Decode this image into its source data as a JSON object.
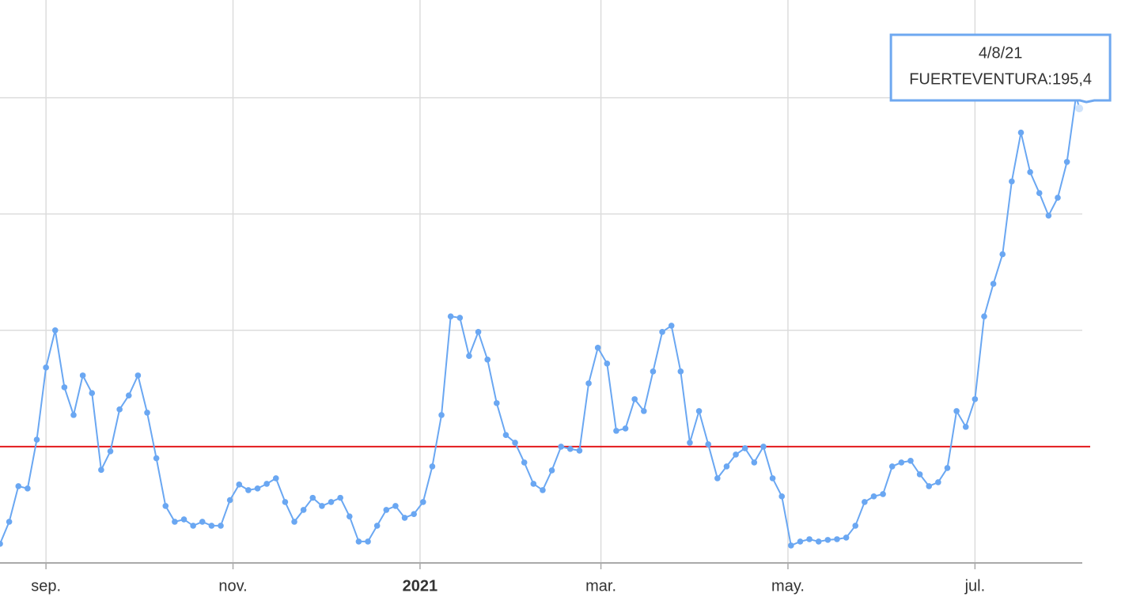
{
  "chart_data": {
    "type": "line",
    "x": [
      "17/8/20",
      "20/8/20",
      "23/8/20",
      "26/8/20",
      "29/8/20",
      "1/9/20",
      "4/9/20",
      "7/9/20",
      "10/9/20",
      "13/9/20",
      "16/9/20",
      "19/9/20",
      "22/9/20",
      "25/9/20",
      "28/9/20",
      "1/10/20",
      "4/10/20",
      "7/10/20",
      "10/10/20",
      "13/10/20",
      "16/10/20",
      "19/10/20",
      "22/10/20",
      "25/10/20",
      "28/10/20",
      "31/10/20",
      "3/11/20",
      "6/11/20",
      "9/11/20",
      "12/11/20",
      "15/11/20",
      "18/11/20",
      "21/11/20",
      "24/11/20",
      "27/11/20",
      "30/11/20",
      "3/12/20",
      "6/12/20",
      "9/12/20",
      "12/12/20",
      "15/12/20",
      "18/12/20",
      "21/12/20",
      "24/12/20",
      "27/12/20",
      "30/12/20",
      "2/1/21",
      "5/1/21",
      "8/1/21",
      "11/1/21",
      "14/1/21",
      "17/1/21",
      "20/1/21",
      "23/1/21",
      "26/1/21",
      "29/1/21",
      "1/2/21",
      "4/2/21",
      "7/2/21",
      "10/2/21",
      "13/2/21",
      "16/2/21",
      "19/2/21",
      "22/2/21",
      "25/2/21",
      "28/2/21",
      "3/3/21",
      "6/3/21",
      "9/3/21",
      "12/3/21",
      "15/3/21",
      "18/3/21",
      "21/3/21",
      "24/3/21",
      "27/3/21",
      "30/3/21",
      "2/4/21",
      "5/4/21",
      "8/4/21",
      "11/4/21",
      "14/4/21",
      "17/4/21",
      "20/4/21",
      "23/4/21",
      "26/4/21",
      "29/4/21",
      "2/5/21",
      "5/5/21",
      "8/5/21",
      "11/5/21",
      "14/5/21",
      "17/5/21",
      "20/5/21",
      "23/5/21",
      "26/5/21",
      "29/5/21",
      "1/6/21",
      "4/6/21",
      "7/6/21",
      "10/6/21",
      "13/6/21",
      "16/6/21",
      "19/6/21",
      "22/6/21",
      "25/6/21",
      "28/6/21",
      "1/7/21",
      "4/7/21",
      "7/7/21",
      "10/7/21",
      "13/7/21",
      "16/7/21",
      "19/7/21",
      "22/7/21",
      "25/7/21",
      "28/7/21",
      "31/7/21",
      "3/8/21",
      "4/8/21"
    ],
    "values": [
      8.2,
      17.7,
      33,
      32,
      53,
      84,
      100,
      75.5,
      63.6,
      80.6,
      73,
      40,
      48,
      66,
      72,
      80.6,
      64.6,
      45,
      24.5,
      17.7,
      18.7,
      16,
      17.7,
      16,
      16,
      27,
      33.7,
      31.3,
      32,
      34,
      36.4,
      26.2,
      17.7,
      22.8,
      28,
      24.5,
      26.2,
      28,
      20,
      9.2,
      9.2,
      16,
      22.8,
      24.5,
      19.4,
      21,
      26.2,
      41.5,
      63.6,
      106,
      105.4,
      89,
      99.3,
      87.4,
      68.7,
      55,
      51.7,
      43.2,
      34,
      31.3,
      39.8,
      50,
      49,
      48.3,
      77.2,
      92.5,
      85.7,
      56.8,
      57.8,
      70.4,
      65.3,
      82.3,
      99.3,
      102,
      82.3,
      51.7,
      65.3,
      51,
      36.4,
      41.5,
      46.6,
      49.3,
      43.2,
      50,
      36.4,
      28.6,
      7.5,
      9.2,
      10.2,
      9.2,
      9.9,
      10.2,
      10.9,
      16,
      26.2,
      28.6,
      29.6,
      41.5,
      43.2,
      43.9,
      38.1,
      33,
      34.7,
      40.8,
      65.3,
      58.5,
      70.4,
      106,
      120,
      132.7,
      164,
      185,
      168,
      159,
      149.3,
      157,
      172.4,
      201,
      195.4
    ],
    "color": "#6aa7f2",
    "highlight_color": "#cfe3fb",
    "xlim": [
      "17/8/20",
      "5/8/21"
    ],
    "xticks": [
      {
        "value": "1/9/20",
        "label": "sep."
      },
      {
        "value": "1/11/20",
        "label": "nov."
      },
      {
        "value": "1/1/21",
        "label": "2021",
        "bold": true
      },
      {
        "value": "1/3/21",
        "label": "mar."
      },
      {
        "value": "1/5/21",
        "label": "may."
      },
      {
        "value": "1/7/21",
        "label": "jul."
      }
    ],
    "ylim": [
      0,
      242
    ],
    "ygridlines": [
      50,
      100,
      150,
      200
    ],
    "grid": true,
    "hline": {
      "value": 50,
      "color": "#e31a1c"
    },
    "tooltip": {
      "title": "4/8/21",
      "text": "FUERTEVENTURA:195,4"
    }
  }
}
